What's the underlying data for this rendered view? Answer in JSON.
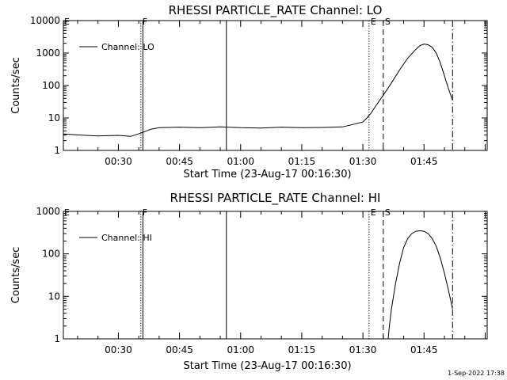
{
  "chart_data": [
    {
      "type": "line",
      "title": "RHESSI PARTICLE_RATE Channel: LO",
      "xlabel": "Start Time (23-Aug-17 00:16:30)",
      "ylabel": "Counts/sec",
      "y_scale": "log",
      "ylim": [
        1,
        10000
      ],
      "xlim_minutes": [
        16.5,
        120.5
      ],
      "x_ticks": [
        {
          "label": "00:30",
          "t": 30
        },
        {
          "label": "00:45",
          "t": 45
        },
        {
          "label": "01:00",
          "t": 60
        },
        {
          "label": "01:15",
          "t": 75
        },
        {
          "label": "01:30",
          "t": 90
        },
        {
          "label": "01:45",
          "t": 105
        }
      ],
      "y_ticks": [
        {
          "label": "1",
          "v": 1
        },
        {
          "label": "10",
          "v": 10
        },
        {
          "label": "100",
          "v": 100
        },
        {
          "label": "1000",
          "v": 1000
        },
        {
          "label": "10000",
          "v": 10000
        }
      ],
      "legend": {
        "label": "Channel: LO",
        "placement": "top-left"
      },
      "series": [
        {
          "name": "Channel: LO",
          "x": [
            16.5,
            20,
            25,
            30,
            33,
            35.5,
            36,
            38,
            40,
            45,
            50,
            55,
            60,
            65,
            70,
            75,
            80,
            85,
            88,
            90,
            91,
            92,
            93,
            95,
            97,
            99,
            101,
            103,
            104,
            105,
            106,
            107,
            108,
            109,
            110,
            111,
            112
          ],
          "y": [
            3.2,
            3.0,
            2.8,
            2.9,
            2.7,
            3.4,
            3.6,
            4.5,
            5.0,
            5.2,
            5.0,
            5.3,
            5.0,
            4.9,
            5.2,
            5.0,
            5.1,
            5.3,
            6.5,
            7.5,
            10,
            14,
            22,
            50,
            120,
            300,
            700,
            1300,
            1700,
            1900,
            1800,
            1500,
            1000,
            500,
            200,
            80,
            35
          ]
        }
      ],
      "markers": [
        {
          "label": "F",
          "t": 35.5,
          "style": "dotted"
        },
        {
          "label": "",
          "t": 36.0,
          "style": "solid"
        },
        {
          "label": "",
          "t": 56.5,
          "style": "solid"
        },
        {
          "label": "E",
          "t": 91.5,
          "style": "dotted"
        },
        {
          "label": "S",
          "t": 95.0,
          "style": "dashed"
        },
        {
          "label": "",
          "t": 112.0,
          "style": "dashdot"
        }
      ],
      "edge_flags": [
        {
          "label": "E",
          "t": 16.5
        }
      ]
    },
    {
      "type": "line",
      "title": "RHESSI PARTICLE_RATE Channel: HI",
      "xlabel": "Start Time (23-Aug-17 00:16:30)",
      "ylabel": "Counts/sec",
      "y_scale": "log",
      "ylim": [
        1,
        1000
      ],
      "xlim_minutes": [
        16.5,
        120.5
      ],
      "x_ticks": [
        {
          "label": "00:30",
          "t": 30
        },
        {
          "label": "00:45",
          "t": 45
        },
        {
          "label": "01:00",
          "t": 60
        },
        {
          "label": "01:15",
          "t": 75
        },
        {
          "label": "01:30",
          "t": 90
        },
        {
          "label": "01:45",
          "t": 105
        }
      ],
      "y_ticks": [
        {
          "label": "1",
          "v": 1
        },
        {
          "label": "10",
          "v": 10
        },
        {
          "label": "100",
          "v": 100
        },
        {
          "label": "1000",
          "v": 1000
        }
      ],
      "legend": {
        "label": "Channel: HI",
        "placement": "top-left"
      },
      "series": [
        {
          "name": "Channel: HI",
          "x": [
            96.2,
            96.5,
            97,
            98,
            99,
            100,
            101,
            102,
            103,
            104,
            105,
            106,
            107,
            108,
            109,
            110,
            111,
            112
          ],
          "y": [
            1,
            2,
            5,
            20,
            60,
            140,
            230,
            300,
            340,
            350,
            340,
            300,
            230,
            150,
            80,
            35,
            14,
            5
          ]
        }
      ],
      "markers": [
        {
          "label": "F",
          "t": 35.5,
          "style": "dotted"
        },
        {
          "label": "",
          "t": 36.0,
          "style": "solid"
        },
        {
          "label": "",
          "t": 56.5,
          "style": "solid"
        },
        {
          "label": "E",
          "t": 91.5,
          "style": "dotted"
        },
        {
          "label": "S",
          "t": 95.0,
          "style": "dashed"
        },
        {
          "label": "",
          "t": 112.0,
          "style": "dashdot"
        }
      ],
      "edge_flags": [
        {
          "label": "E",
          "t": 16.5
        }
      ]
    }
  ],
  "footer": {
    "timestamp": "1-Sep-2022 17:38"
  }
}
